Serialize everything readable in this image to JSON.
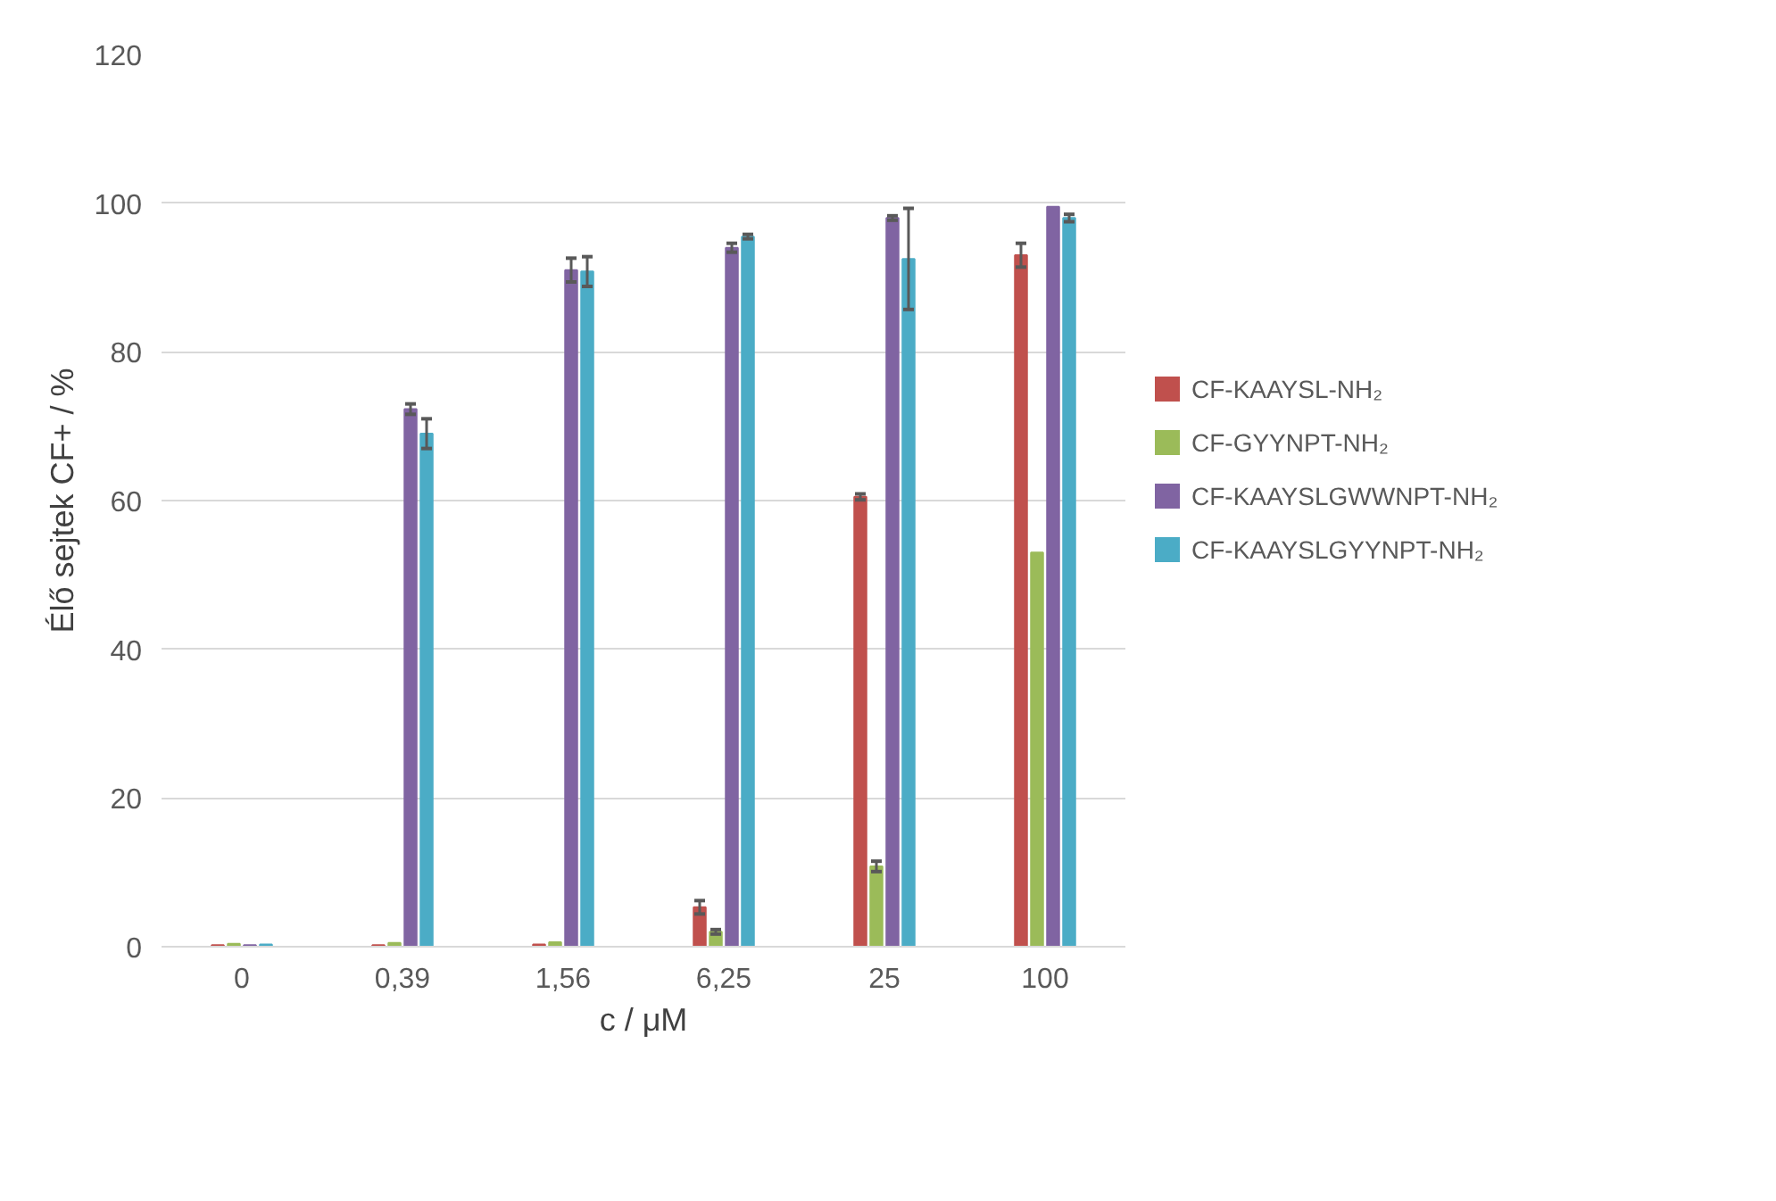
{
  "chart_data": {
    "type": "bar",
    "xlabel": "c / μM",
    "ylabel": "Élő sejtek CF+ / %",
    "categories": [
      "0",
      "0,39",
      "1,56",
      "6,25",
      "25",
      "100"
    ],
    "series": [
      {
        "name": "CF-KAAYSL-NH₂",
        "color": "#c0504d",
        "values": [
          0.2,
          0.2,
          0.3,
          5.3,
          60.5,
          93
        ],
        "errors": [
          null,
          null,
          null,
          0.9,
          0.4,
          1.6
        ]
      },
      {
        "name": "CF-GYYNPT-NH₂",
        "color": "#9bbb59",
        "values": [
          0.4,
          0.5,
          0.6,
          2,
          10.8,
          53
        ],
        "errors": [
          null,
          null,
          null,
          0.3,
          0.7,
          null
        ]
      },
      {
        "name": "CF-KAAYSLGWWNPT-NH₂",
        "color": "#8064a2",
        "values": [
          0.2,
          72.3,
          91,
          94,
          98,
          99.5
        ],
        "errors": [
          null,
          0.7,
          1.6,
          0.6,
          0.3,
          null
        ]
      },
      {
        "name": "CF-KAAYSLGYYNPT-NH₂",
        "color": "#4bacc6",
        "values": [
          0.3,
          69,
          90.8,
          95.5,
          92.5,
          98
        ],
        "errors": [
          null,
          2,
          2,
          0.3,
          6.8,
          0.5
        ]
      }
    ],
    "ylim": [
      0,
      120
    ],
    "yticks": [
      0,
      20,
      40,
      60,
      80,
      100,
      120
    ],
    "grid": "y",
    "legend": "right"
  }
}
